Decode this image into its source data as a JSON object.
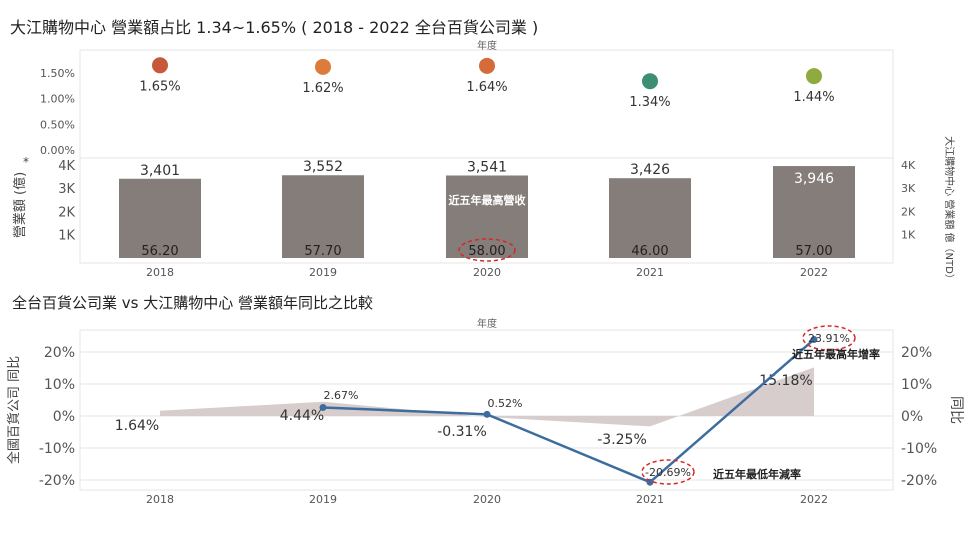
{
  "titles": {
    "top": "大江購物中心 營業額占比 1.34~1.65% ( 2018 - 2022 全台百貨公司業 )",
    "bottom": "全台百貨公司業 vs 大江購物中心 營業額年同比之比較"
  },
  "colors": {
    "bar": "#857d7a",
    "area": "#d1c8c6",
    "line": "#3c6d9e",
    "grid": "#e6e6e6",
    "annotation_circle": "#d62728",
    "dot_2018": "#c7583a",
    "dot_2019": "#dd7b3a",
    "dot_2020": "#d56a3a",
    "dot_2021": "#3e8f72",
    "dot_2022": "#8faa3e"
  },
  "chart_data": [
    {
      "type": "scatter",
      "name": "share_dots",
      "header_label": "年度",
      "categories": [
        "2018",
        "2019",
        "2020",
        "2021",
        "2022"
      ],
      "values": [
        1.65,
        1.62,
        1.64,
        1.34,
        1.44
      ],
      "value_labels": [
        "1.65%",
        "1.62%",
        "1.64%",
        "1.34%",
        "1.44%"
      ],
      "y_tick_labels": [
        "1.50%",
        "1.00%",
        "0.50%",
        "0.00%"
      ],
      "y_ticks": [
        1.5,
        1.0,
        0.5,
        0.0
      ],
      "ylim": [
        0,
        1.9
      ]
    },
    {
      "type": "bar",
      "name": "revenue_bars",
      "categories": [
        "2018",
        "2019",
        "2020",
        "2021",
        "2022"
      ],
      "values": [
        3401,
        3552,
        3541,
        3426,
        3946
      ],
      "value_labels": [
        "3,401",
        "3,552",
        "3,541",
        "3,426",
        "3,946"
      ],
      "inner_labels": [
        "56.20",
        "57.70",
        "58.00",
        "46.00",
        "57.00"
      ],
      "ylabel_left": "營業額 (億)",
      "ylabel_left_marker": "*",
      "ylabel_right": "大江購物中心 營業額 億（NTD）",
      "y_tick_labels": [
        "4K",
        "3K",
        "2K",
        "1K"
      ],
      "y_tick_labels_right": [
        "4K",
        "3K",
        "2K",
        "1K"
      ],
      "y_ticks": [
        4000,
        3000,
        2000,
        1000
      ],
      "ylim": [
        0,
        4300
      ],
      "annotation": "近五年最高營收"
    },
    {
      "type": "line",
      "name": "yoy_comparison",
      "header_label": "年度",
      "categories": [
        "2018",
        "2019",
        "2020",
        "2021",
        "2022"
      ],
      "area_values": [
        1.64,
        4.44,
        -0.31,
        -3.25,
        15.18
      ],
      "area_labels": [
        "1.64%",
        "4.44%",
        "-0.31%",
        "-3.25%",
        "15.18%"
      ],
      "line_values": [
        2.67,
        0.52,
        -20.69,
        23.91
      ],
      "line_categories": [
        "2019",
        "2020",
        "2021",
        "2022"
      ],
      "line_labels": [
        "2.67%",
        "0.52%",
        "-20.69%",
        "23.91%"
      ],
      "y_tick_labels": [
        "20%",
        "10%",
        "0%",
        "-10%",
        "-20%"
      ],
      "y_tick_labels_right": [
        "20%",
        "10%",
        "0%",
        "-10%",
        "-20%"
      ],
      "y_ticks": [
        20,
        10,
        0,
        -10,
        -20
      ],
      "ylim": [
        -22.5,
        26
      ],
      "ylabel_left": "全國百貨公司 同比",
      "ylabel_right": "同比",
      "annotations": {
        "high": "近五年最高年增率",
        "low": "近五年最低年減率"
      }
    }
  ]
}
